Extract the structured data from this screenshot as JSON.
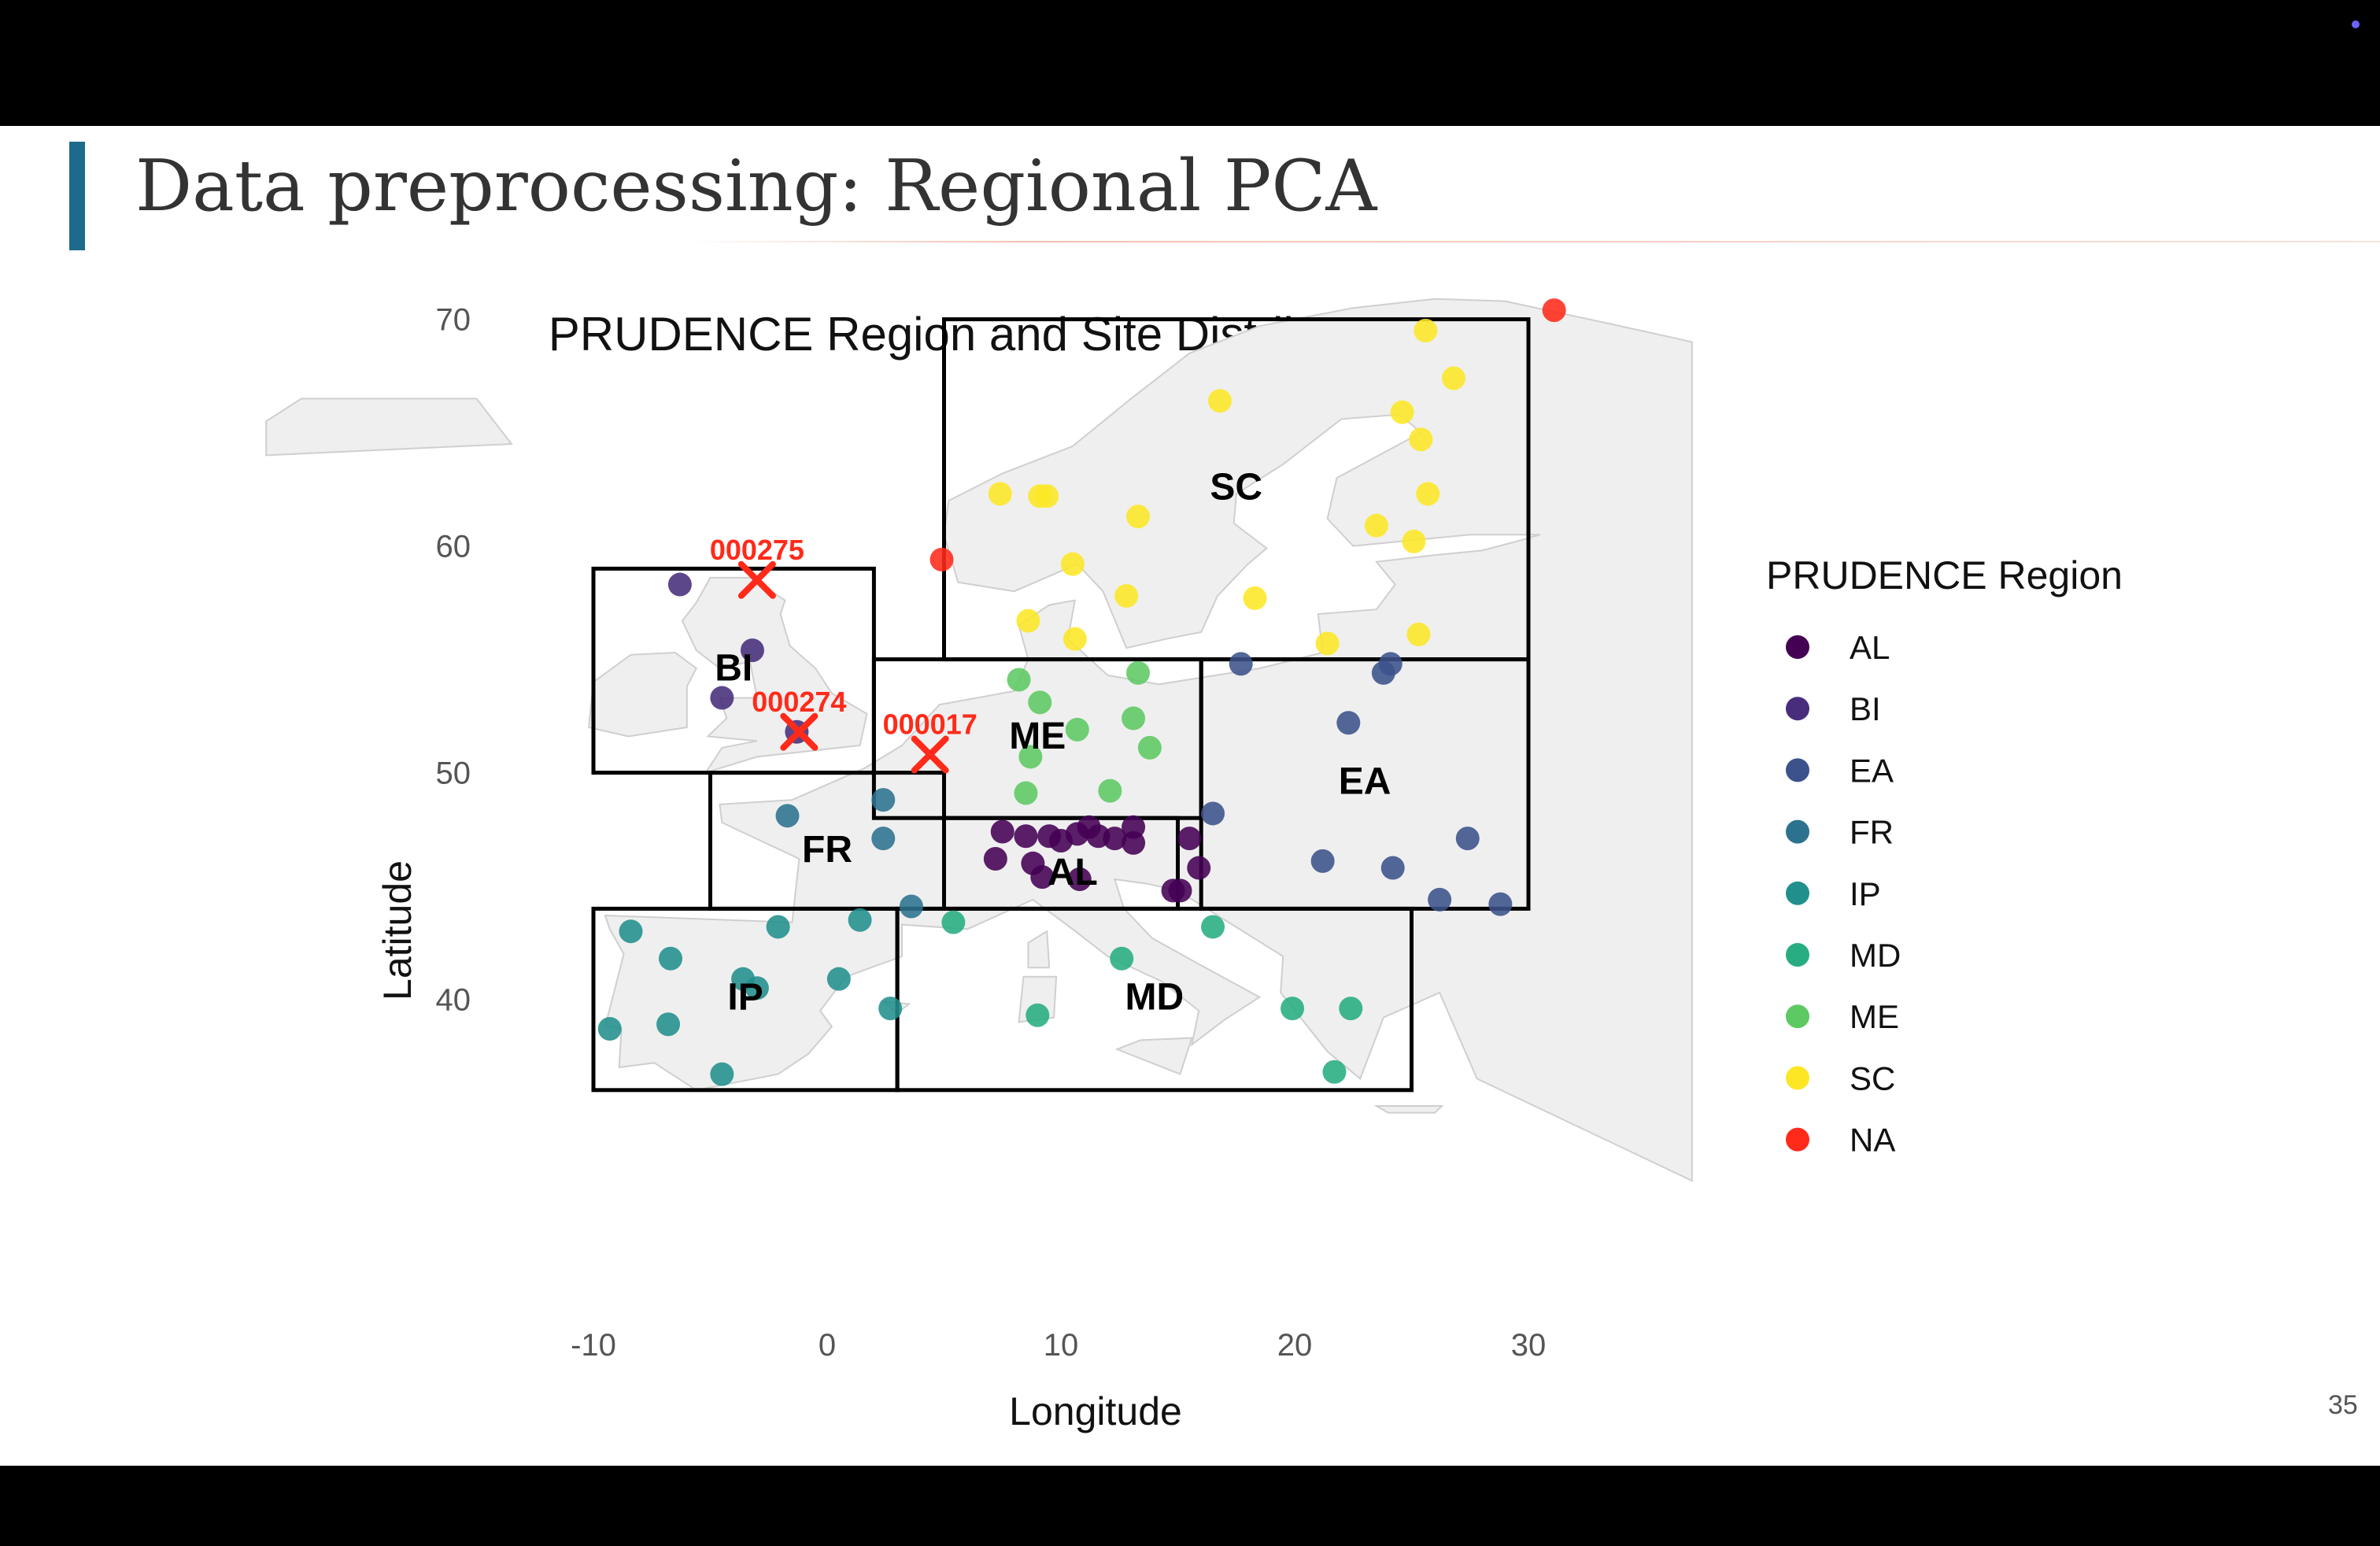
{
  "slide": {
    "title": "Data preprocessing: Regional PCA",
    "page_number": "35"
  },
  "colors": {
    "accent": "#1c6b8c",
    "AL": "#440154",
    "BI": "#472d7b",
    "EA": "#3b528b",
    "FR": "#2c728e",
    "IP": "#21908d",
    "MD": "#27ad81",
    "ME": "#5dc962",
    "SC": "#fde725",
    "NA": "#ff2a1a",
    "highlight_marker": "#ff2a1a"
  },
  "chart_data": {
    "type": "scatter",
    "title": "PRUDENCE Region and Site Distribution Map",
    "xlabel": "Longitude",
    "ylabel": "Latitude",
    "xlim": [
      -10,
      36
    ],
    "ylim": [
      32,
      71
    ],
    "x_ticks": [
      "-10",
      "0",
      "10",
      "20",
      "30"
    ],
    "y_ticks": [
      "40",
      "50",
      "60",
      "70"
    ],
    "basemap": "Europe",
    "legend": {
      "title": "PRUDENCE Region",
      "position": "right",
      "entries": [
        "AL",
        "BI",
        "EA",
        "FR",
        "IP",
        "MD",
        "ME",
        "SC",
        "NA"
      ]
    },
    "regions": [
      {
        "label": "BI",
        "lon": [
          -10,
          2
        ],
        "lat": [
          50,
          59
        ]
      },
      {
        "label": "IP",
        "lon": [
          -10,
          3
        ],
        "lat": [
          36,
          44
        ]
      },
      {
        "label": "FR",
        "lon": [
          -5,
          5
        ],
        "lat": [
          44,
          50
        ]
      },
      {
        "label": "ME",
        "lon": [
          2,
          16
        ],
        "lat": [
          48,
          55
        ]
      },
      {
        "label": "SC",
        "lon": [
          5,
          30
        ],
        "lat": [
          55,
          70
        ]
      },
      {
        "label": "AL",
        "lon": [
          5,
          15
        ],
        "lat": [
          44,
          48
        ]
      },
      {
        "label": "MD",
        "lon": [
          3,
          25
        ],
        "lat": [
          36,
          44
        ]
      },
      {
        "label": "EA",
        "lon": [
          16,
          30
        ],
        "lat": [
          44,
          55
        ]
      }
    ],
    "region_labels": [
      {
        "text": "SC",
        "lon": 17.5,
        "lat": 62.5
      },
      {
        "text": "BI",
        "lon": -4,
        "lat": 54.5
      },
      {
        "text": "ME",
        "lon": 9,
        "lat": 51.5
      },
      {
        "text": "EA",
        "lon": 23,
        "lat": 49.5
      },
      {
        "text": "FR",
        "lon": 0,
        "lat": 46.5
      },
      {
        "text": "AL",
        "lon": 10.5,
        "lat": 45.5
      },
      {
        "text": "IP",
        "lon": -3.5,
        "lat": 40
      },
      {
        "text": "MD",
        "lon": 14,
        "lat": 40
      }
    ],
    "highlighted_sites": [
      {
        "id": "000275",
        "lon": -3,
        "lat": 58.5
      },
      {
        "id": "000274",
        "lon": -1.2,
        "lat": 51.8
      },
      {
        "id": "000017",
        "lon": 4.4,
        "lat": 50.8
      }
    ],
    "series": [
      {
        "name": "AL",
        "points": [
          [
            7.5,
            47.4
          ],
          [
            8.5,
            47.2
          ],
          [
            9.5,
            47.2
          ],
          [
            10,
            47
          ],
          [
            10.7,
            47.3
          ],
          [
            11.2,
            47.6
          ],
          [
            11.6,
            47.2
          ],
          [
            12.3,
            47.1
          ],
          [
            13.1,
            47.6
          ],
          [
            13.1,
            46.9
          ],
          [
            15.5,
            47.1
          ],
          [
            7.2,
            46.2
          ],
          [
            8.8,
            46
          ],
          [
            9.2,
            45.4
          ],
          [
            10.8,
            45.3
          ],
          [
            15.1,
            44.8
          ],
          [
            15.9,
            45.8
          ],
          [
            14.8,
            44.8
          ]
        ]
      },
      {
        "name": "BI",
        "points": [
          [
            -6.3,
            58.3
          ],
          [
            -3.2,
            55.4
          ],
          [
            -4.5,
            53.3
          ],
          [
            -1.3,
            51.8
          ]
        ]
      },
      {
        "name": "EA",
        "points": [
          [
            17.7,
            54.8
          ],
          [
            23.8,
            54.4
          ],
          [
            24.1,
            54.8
          ],
          [
            22.3,
            52.2
          ],
          [
            16.5,
            48.2
          ],
          [
            21.2,
            46.1
          ],
          [
            24.2,
            45.8
          ],
          [
            27.4,
            47.1
          ],
          [
            26.2,
            44.4
          ],
          [
            28.8,
            44.2
          ]
        ]
      },
      {
        "name": "FR",
        "points": [
          [
            -1.7,
            48.1
          ],
          [
            2.4,
            48.8
          ],
          [
            2.4,
            47.1
          ],
          [
            3.6,
            44.1
          ]
        ]
      },
      {
        "name": "IP",
        "points": [
          [
            -8.4,
            43
          ],
          [
            -6.7,
            41.8
          ],
          [
            -2.1,
            43.2
          ],
          [
            1.4,
            43.5
          ],
          [
            -3.6,
            40.9
          ],
          [
            -3,
            40.5
          ],
          [
            0.5,
            40.9
          ],
          [
            2.7,
            39.6
          ],
          [
            -9.3,
            38.7
          ],
          [
            -6.8,
            38.9
          ],
          [
            -4.5,
            36.7
          ]
        ]
      },
      {
        "name": "MD",
        "points": [
          [
            5.4,
            43.4
          ],
          [
            12.6,
            41.8
          ],
          [
            9,
            39.3
          ],
          [
            16.5,
            43.2
          ],
          [
            19.9,
            39.6
          ],
          [
            22.4,
            39.6
          ],
          [
            21.7,
            36.8
          ]
        ]
      },
      {
        "name": "ME",
        "points": [
          [
            8.2,
            54.1
          ],
          [
            9.1,
            53.1
          ],
          [
            13.3,
            54.4
          ],
          [
            10.7,
            51.9
          ],
          [
            13.1,
            52.4
          ],
          [
            13.8,
            51.1
          ],
          [
            8.7,
            50.7
          ],
          [
            8.5,
            49.1
          ],
          [
            12.1,
            49.2
          ]
        ]
      },
      {
        "name": "SC",
        "points": [
          [
            25.6,
            69.5
          ],
          [
            26.8,
            67.4
          ],
          [
            16.8,
            66.4
          ],
          [
            24.6,
            65.9
          ],
          [
            25.4,
            64.7
          ],
          [
            7.4,
            62.3
          ],
          [
            9.1,
            62.2
          ],
          [
            9.4,
            62.2
          ],
          [
            13.3,
            61.3
          ],
          [
            25.7,
            62.3
          ],
          [
            23.5,
            60.9
          ],
          [
            25.1,
            60.2
          ],
          [
            10.5,
            59.2
          ],
          [
            12.8,
            57.8
          ],
          [
            18.3,
            57.7
          ],
          [
            8.6,
            56.7
          ],
          [
            10.6,
            55.9
          ],
          [
            21.4,
            55.7
          ],
          [
            25.3,
            56.1
          ]
        ]
      },
      {
        "name": "NA",
        "points": [
          [
            31.1,
            70.4
          ],
          [
            4.9,
            59.4
          ]
        ]
      }
    ]
  }
}
